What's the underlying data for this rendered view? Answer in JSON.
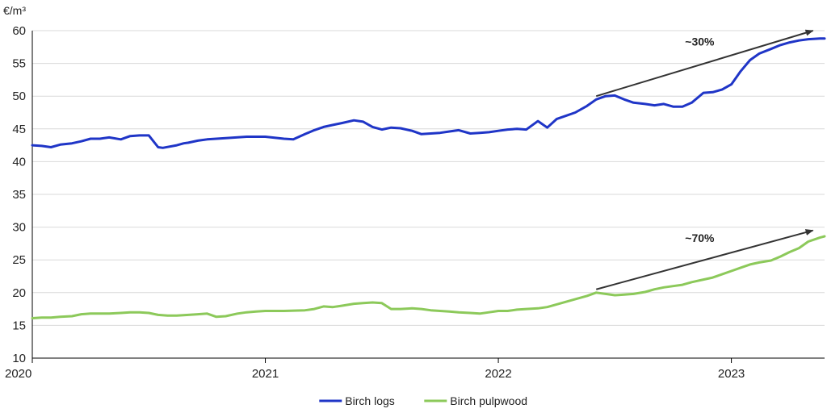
{
  "chart_data": {
    "type": "line",
    "ylabel": "€/m³",
    "ylim": [
      10,
      60
    ],
    "yticks": [
      10,
      15,
      20,
      25,
      30,
      35,
      40,
      45,
      50,
      55,
      60
    ],
    "xlim": [
      2020.0,
      2023.4
    ],
    "xticks": [
      {
        "value": 2020,
        "label": "2020"
      },
      {
        "value": 2021,
        "label": "2021"
      },
      {
        "value": 2022,
        "label": "2022"
      },
      {
        "value": 2023,
        "label": "2023"
      }
    ],
    "grid": "horizontal",
    "legend_position": "bottom",
    "colors": {
      "birch_logs": "#1f35c7",
      "birch_pulpwood": "#8cc95a",
      "arrow": "#333333"
    },
    "series": [
      {
        "name": "Birch logs",
        "color": "#1f35c7",
        "x": [
          2020.0,
          2020.04,
          2020.08,
          2020.12,
          2020.17,
          2020.21,
          2020.25,
          2020.29,
          2020.33,
          2020.38,
          2020.42,
          2020.46,
          2020.5,
          2020.54,
          2020.56,
          2020.62,
          2020.65,
          2020.67,
          2020.71,
          2020.75,
          2020.83,
          2020.92,
          2021.0,
          2021.08,
          2021.12,
          2021.17,
          2021.21,
          2021.25,
          2021.29,
          2021.33,
          2021.38,
          2021.42,
          2021.46,
          2021.5,
          2021.54,
          2021.58,
          2021.63,
          2021.67,
          2021.71,
          2021.75,
          2021.79,
          2021.83,
          2021.88,
          2021.92,
          2021.96,
          2022.0,
          2022.04,
          2022.08,
          2022.12,
          2022.17,
          2022.21,
          2022.25,
          2022.29,
          2022.33,
          2022.38,
          2022.42,
          2022.46,
          2022.5,
          2022.54,
          2022.58,
          2022.63,
          2022.67,
          2022.71,
          2022.75,
          2022.79,
          2022.83,
          2022.88,
          2022.92,
          2022.96,
          2023.0,
          2023.04,
          2023.08,
          2023.12,
          2023.17,
          2023.21,
          2023.25,
          2023.29,
          2023.33,
          2023.38,
          2023.4
        ],
        "y": [
          42.5,
          42.4,
          42.2,
          42.6,
          42.8,
          43.1,
          43.5,
          43.5,
          43.7,
          43.4,
          43.9,
          44.0,
          44.0,
          42.2,
          42.1,
          42.5,
          42.8,
          42.9,
          43.2,
          43.4,
          43.6,
          43.8,
          43.8,
          43.5,
          43.4,
          44.2,
          44.8,
          45.3,
          45.6,
          45.9,
          46.3,
          46.1,
          45.3,
          44.9,
          45.2,
          45.1,
          44.7,
          44.2,
          44.3,
          44.4,
          44.6,
          44.8,
          44.3,
          44.4,
          44.5,
          44.7,
          44.9,
          45.0,
          44.9,
          46.2,
          45.2,
          46.5,
          47.0,
          47.5,
          48.5,
          49.5,
          50.0,
          50.1,
          49.5,
          49.0,
          48.8,
          48.6,
          48.8,
          48.4,
          48.4,
          49.0,
          50.5,
          50.6,
          51.0,
          51.8,
          53.8,
          55.5,
          56.5,
          57.2,
          57.8,
          58.2,
          58.5,
          58.7,
          58.8,
          58.8
        ]
      },
      {
        "name": "Birch pulpwood",
        "color": "#8cc95a",
        "x": [
          2020.0,
          2020.04,
          2020.08,
          2020.12,
          2020.17,
          2020.21,
          2020.25,
          2020.29,
          2020.33,
          2020.38,
          2020.42,
          2020.46,
          2020.5,
          2020.54,
          2020.58,
          2020.62,
          2020.67,
          2020.71,
          2020.75,
          2020.79,
          2020.83,
          2020.88,
          2020.92,
          2020.96,
          2021.0,
          2021.08,
          2021.17,
          2021.21,
          2021.25,
          2021.29,
          2021.33,
          2021.38,
          2021.42,
          2021.46,
          2021.5,
          2021.54,
          2021.58,
          2021.63,
          2021.67,
          2021.71,
          2021.75,
          2021.79,
          2021.83,
          2021.88,
          2021.92,
          2021.96,
          2022.0,
          2022.04,
          2022.08,
          2022.12,
          2022.17,
          2022.21,
          2022.25,
          2022.29,
          2022.33,
          2022.38,
          2022.42,
          2022.46,
          2022.5,
          2022.54,
          2022.58,
          2022.63,
          2022.67,
          2022.71,
          2022.75,
          2022.79,
          2022.83,
          2022.88,
          2022.92,
          2022.96,
          2023.0,
          2023.04,
          2023.08,
          2023.12,
          2023.17,
          2023.21,
          2023.25,
          2023.29,
          2023.33,
          2023.38,
          2023.4
        ],
        "y": [
          16.1,
          16.2,
          16.2,
          16.3,
          16.4,
          16.7,
          16.8,
          16.8,
          16.8,
          16.9,
          17.0,
          17.0,
          16.9,
          16.6,
          16.5,
          16.5,
          16.6,
          16.7,
          16.8,
          16.3,
          16.4,
          16.8,
          17.0,
          17.1,
          17.2,
          17.2,
          17.3,
          17.5,
          17.9,
          17.8,
          18.0,
          18.3,
          18.4,
          18.5,
          18.4,
          17.5,
          17.5,
          17.6,
          17.5,
          17.3,
          17.2,
          17.1,
          17.0,
          16.9,
          16.8,
          17.0,
          17.2,
          17.2,
          17.4,
          17.5,
          17.6,
          17.8,
          18.2,
          18.6,
          19.0,
          19.5,
          20.0,
          19.8,
          19.6,
          19.7,
          19.8,
          20.1,
          20.5,
          20.8,
          21.0,
          21.2,
          21.6,
          22.0,
          22.3,
          22.8,
          23.3,
          23.8,
          24.3,
          24.6,
          24.9,
          25.5,
          26.2,
          26.8,
          27.8,
          28.4,
          28.6
        ]
      }
    ],
    "annotations": [
      {
        "label": "~30%",
        "arrow_from": [
          2022.42,
          50.0
        ],
        "arrow_to": [
          2023.35,
          60.0
        ]
      },
      {
        "label": "~70%",
        "arrow_from": [
          2022.42,
          20.5
        ],
        "arrow_to": [
          2023.35,
          29.5
        ]
      }
    ]
  }
}
